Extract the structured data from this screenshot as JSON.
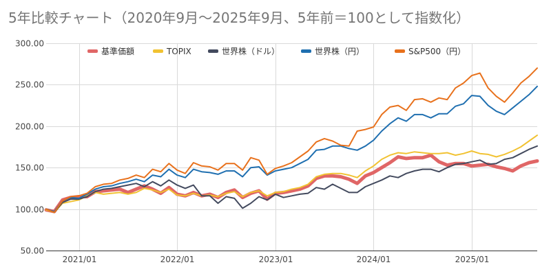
{
  "chart_data": {
    "type": "line",
    "title": "5年比較チャート（2020年9月〜2025年9月、5年前＝100として指数化）",
    "xlabel": "",
    "ylabel": "",
    "ylim": [
      50,
      300
    ],
    "yticks": [
      "50.00",
      "100.00",
      "150.00",
      "200.00",
      "250.00",
      "300.00"
    ],
    "xticks": [
      {
        "label": "2021/01",
        "date": "2021-01"
      },
      {
        "label": "2022/01",
        "date": "2022-01"
      },
      {
        "label": "2023/01",
        "date": "2023-01"
      },
      {
        "label": "2024/01",
        "date": "2024-01"
      },
      {
        "label": "2025/01",
        "date": "2025-01"
      }
    ],
    "grid": true,
    "legend_position": "top",
    "x": [
      "2020-09",
      "2020-10",
      "2020-11",
      "2020-12",
      "2021-01",
      "2021-02",
      "2021-03",
      "2021-04",
      "2021-05",
      "2021-06",
      "2021-07",
      "2021-08",
      "2021-09",
      "2021-10",
      "2021-11",
      "2021-12",
      "2022-01",
      "2022-02",
      "2022-03",
      "2022-04",
      "2022-05",
      "2022-06",
      "2022-07",
      "2022-08",
      "2022-09",
      "2022-10",
      "2022-11",
      "2022-12",
      "2023-01",
      "2023-02",
      "2023-03",
      "2023-04",
      "2023-05",
      "2023-06",
      "2023-07",
      "2023-08",
      "2023-09",
      "2023-10",
      "2023-11",
      "2023-12",
      "2024-01",
      "2024-02",
      "2024-03",
      "2024-04",
      "2024-05",
      "2024-06",
      "2024-07",
      "2024-08",
      "2024-09",
      "2024-10",
      "2024-11",
      "2024-12",
      "2025-01",
      "2025-02",
      "2025-03",
      "2025-04",
      "2025-05",
      "2025-06",
      "2025-07",
      "2025-08",
      "2025-09"
    ],
    "series": [
      {
        "name": "基準価額",
        "color": "#e06666",
        "width": 5,
        "values": [
          99,
          97,
          111,
          114,
          115,
          115,
          121,
          122,
          123,
          124,
          120,
          124,
          128,
          124,
          119,
          126,
          118,
          116,
          120,
          116,
          118,
          114,
          120,
          123,
          114,
          119,
          122,
          112,
          119,
          120,
          122,
          124,
          128,
          137,
          140,
          140,
          139,
          136,
          131,
          140,
          144,
          150,
          156,
          163,
          161,
          162,
          162,
          165,
          157,
          153,
          155,
          155,
          152,
          153,
          154,
          151,
          149,
          146,
          152,
          156,
          158
        ]
      },
      {
        "name": "TOPIX",
        "color": "#f1c232",
        "width": 2,
        "values": [
          99,
          96,
          107,
          109,
          111,
          116,
          120,
          118,
          119,
          120,
          118,
          120,
          125,
          123,
          120,
          124,
          117,
          116,
          119,
          116,
          117,
          115,
          119,
          121,
          115,
          120,
          122,
          116,
          120,
          121,
          124,
          126,
          130,
          139,
          142,
          143,
          143,
          141,
          138,
          146,
          152,
          160,
          165,
          168,
          167,
          169,
          168,
          167,
          167,
          168,
          165,
          167,
          170,
          167,
          166,
          163,
          166,
          170,
          175,
          182,
          189
        ]
      },
      {
        "name": "世界株（ドル）",
        "color": "#434a5e",
        "width": 2,
        "values": [
          100,
          96,
          108,
          112,
          112,
          115,
          121,
          124,
          125,
          127,
          129,
          131,
          127,
          133,
          128,
          135,
          129,
          125,
          129,
          116,
          116,
          107,
          115,
          113,
          101,
          107,
          115,
          111,
          118,
          114,
          116,
          118,
          119,
          126,
          124,
          130,
          125,
          120,
          120,
          127,
          131,
          135,
          140,
          138,
          143,
          146,
          148,
          148,
          145,
          150,
          154,
          155,
          157,
          159,
          154,
          155,
          160,
          162,
          167,
          172,
          176
        ]
      },
      {
        "name": "世界株（円）",
        "color": "#1f6fb0",
        "width": 2,
        "values": [
          100,
          97,
          110,
          114,
          113,
          118,
          124,
          127,
          128,
          131,
          133,
          136,
          133,
          141,
          139,
          148,
          141,
          138,
          148,
          145,
          144,
          142,
          146,
          146,
          139,
          150,
          151,
          141,
          146,
          148,
          150,
          155,
          160,
          171,
          172,
          176,
          176,
          173,
          171,
          176,
          183,
          194,
          203,
          210,
          206,
          214,
          214,
          210,
          215,
          215,
          224,
          227,
          237,
          236,
          225,
          218,
          214,
          222,
          230,
          238,
          248
        ]
      },
      {
        "name": "S&P500（円）",
        "color": "#e8711c",
        "width": 2,
        "values": [
          100,
          96,
          110,
          115,
          116,
          119,
          127,
          130,
          131,
          135,
          137,
          141,
          138,
          148,
          145,
          155,
          147,
          143,
          156,
          152,
          151,
          147,
          155,
          155,
          147,
          162,
          159,
          142,
          149,
          152,
          156,
          163,
          170,
          181,
          185,
          182,
          177,
          176,
          194,
          196,
          199,
          214,
          223,
          225,
          219,
          232,
          233,
          229,
          234,
          232,
          246,
          252,
          261,
          264,
          246,
          236,
          229,
          240,
          252,
          260,
          270
        ]
      }
    ]
  }
}
